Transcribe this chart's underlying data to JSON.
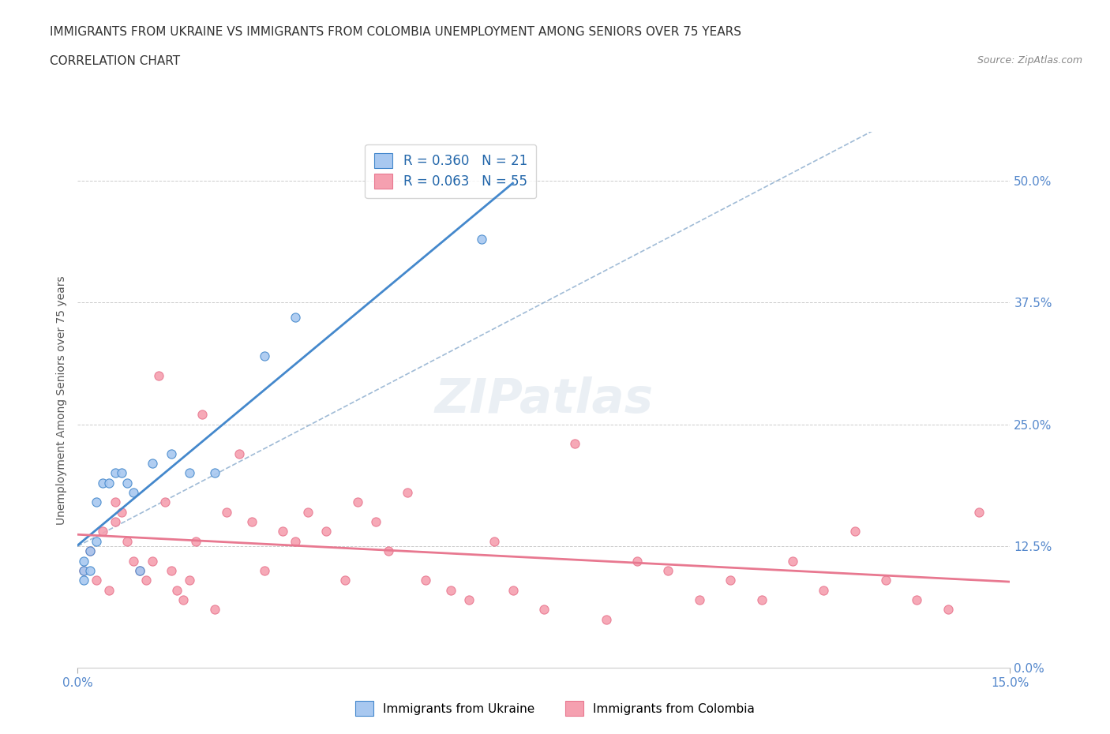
{
  "title_line1": "IMMIGRANTS FROM UKRAINE VS IMMIGRANTS FROM COLOMBIA UNEMPLOYMENT AMONG SENIORS OVER 75 YEARS",
  "title_line2": "CORRELATION CHART",
  "source": "Source: ZipAtlas.com",
  "ylabel": "Unemployment Among Seniors over 75 years",
  "xlim": [
    0.0,
    0.15
  ],
  "ylim": [
    0.0,
    0.55
  ],
  "yticks": [
    0.0,
    0.125,
    0.25,
    0.375,
    0.5
  ],
  "ytick_labels": [
    "0.0%",
    "12.5%",
    "25.0%",
    "37.5%",
    "50.0%"
  ],
  "ukraine_color": "#a8c8f0",
  "colombia_color": "#f5a0b0",
  "ukraine_R": 0.36,
  "ukraine_N": 21,
  "colombia_R": 0.063,
  "colombia_N": 55,
  "ukraine_scatter_x": [
    0.001,
    0.001,
    0.001,
    0.002,
    0.002,
    0.003,
    0.003,
    0.004,
    0.005,
    0.006,
    0.007,
    0.008,
    0.009,
    0.01,
    0.012,
    0.015,
    0.018,
    0.022,
    0.03,
    0.035,
    0.065
  ],
  "ukraine_scatter_y": [
    0.09,
    0.1,
    0.11,
    0.1,
    0.12,
    0.13,
    0.17,
    0.19,
    0.19,
    0.2,
    0.2,
    0.19,
    0.18,
    0.1,
    0.21,
    0.22,
    0.2,
    0.2,
    0.32,
    0.36,
    0.44
  ],
  "colombia_scatter_x": [
    0.001,
    0.002,
    0.003,
    0.004,
    0.005,
    0.006,
    0.006,
    0.007,
    0.008,
    0.009,
    0.01,
    0.011,
    0.012,
    0.013,
    0.014,
    0.015,
    0.016,
    0.017,
    0.018,
    0.019,
    0.02,
    0.022,
    0.024,
    0.026,
    0.028,
    0.03,
    0.033,
    0.035,
    0.037,
    0.04,
    0.043,
    0.045,
    0.048,
    0.05,
    0.053,
    0.056,
    0.06,
    0.063,
    0.067,
    0.07,
    0.075,
    0.08,
    0.085,
    0.09,
    0.095,
    0.1,
    0.105,
    0.11,
    0.115,
    0.12,
    0.125,
    0.13,
    0.135,
    0.14,
    0.145
  ],
  "colombia_scatter_y": [
    0.1,
    0.12,
    0.09,
    0.14,
    0.08,
    0.15,
    0.17,
    0.16,
    0.13,
    0.11,
    0.1,
    0.09,
    0.11,
    0.3,
    0.17,
    0.1,
    0.08,
    0.07,
    0.09,
    0.13,
    0.26,
    0.06,
    0.16,
    0.22,
    0.15,
    0.1,
    0.14,
    0.13,
    0.16,
    0.14,
    0.09,
    0.17,
    0.15,
    0.12,
    0.18,
    0.09,
    0.08,
    0.07,
    0.13,
    0.08,
    0.06,
    0.23,
    0.05,
    0.11,
    0.1,
    0.07,
    0.09,
    0.07,
    0.11,
    0.08,
    0.14,
    0.09,
    0.07,
    0.06,
    0.16
  ],
  "background_color": "#ffffff",
  "grid_color": "#cccccc",
  "trend_ukraine_color": "#4488cc",
  "trend_colombia_color": "#e87890",
  "trend_dashed_color": "#88aacc",
  "legend_ukraine_label": "Immigrants from Ukraine",
  "legend_colombia_label": "Immigrants from Colombia",
  "watermark": "ZIPatlas",
  "title_fontsize": 11,
  "tick_label_color": "#5588cc",
  "axis_label_color": "#555555"
}
